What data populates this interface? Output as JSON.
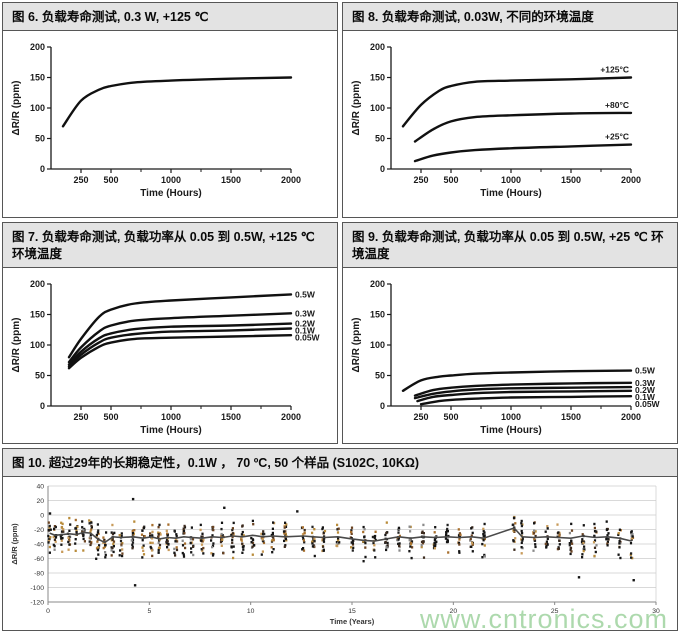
{
  "page": {
    "watermark": "www.cntronics.com",
    "watermark_color": "#9fd39f",
    "title_bar_bg": "#e3e3e3",
    "curve_color": "#111111",
    "grid_color": "#cccccc"
  },
  "panels": [
    {
      "title": "图 6. 负载寿命测试, 0.3 W, +125 ℃"
    },
    {
      "title": "图 8.  负载寿命测试, 0.03W, 不同的环境温度"
    },
    {
      "title": "图 7. 负载寿命测试, 负载功率从 0.05 到 0.5W, +125 ℃ 环境温度"
    },
    {
      "title": "图 9.  负载寿命测试, 负载功率从 0.05 到 0.5W, +25 ℃ 环境温度"
    },
    {
      "title": "图 10. 超过29年的长期稳定性，0.1W ， 70 ºC, 50 个样品 (S102C, 10KΩ)"
    }
  ],
  "chart_data": [
    {
      "type": "line",
      "title": "负载寿命测试 0.3W +125C",
      "xlabel": "Time (Hours)",
      "ylabel": "ΔR/R (ppm)",
      "xlim": [
        0,
        2000
      ],
      "ylim": [
        0,
        200
      ],
      "xticks_major": [
        250,
        500,
        1000,
        1500,
        2000
      ],
      "xticks_minor": [
        750,
        1250,
        1750
      ],
      "yticks": [
        0,
        50,
        100,
        150,
        200
      ],
      "label_pos": "none",
      "series": [
        {
          "name": "0.3W +125C",
          "points": [
            [
              100,
              70
            ],
            [
              250,
              112
            ],
            [
              400,
              130
            ],
            [
              500,
              136
            ],
            [
              700,
              142
            ],
            [
              1000,
              145
            ],
            [
              1500,
              148
            ],
            [
              2000,
              150
            ]
          ]
        }
      ]
    },
    {
      "type": "line",
      "title": "负载寿命测试 0.03W 不同环境温度",
      "xlabel": "Time (Hours)",
      "ylabel": "ΔR/R (ppm)",
      "xlim": [
        0,
        2000
      ],
      "ylim": [
        0,
        200
      ],
      "xticks_major": [
        250,
        500,
        1000,
        1500,
        2000
      ],
      "xticks_minor": [
        750,
        1250,
        1750
      ],
      "yticks": [
        0,
        50,
        100,
        150,
        200
      ],
      "label_pos": "above-end",
      "series": [
        {
          "name": "+125°C",
          "points": [
            [
              100,
              70
            ],
            [
              250,
              105
            ],
            [
              400,
              128
            ],
            [
              500,
              136
            ],
            [
              700,
              143
            ],
            [
              1000,
              145
            ],
            [
              1500,
              147
            ],
            [
              2000,
              150
            ]
          ]
        },
        {
          "name": "+80°C",
          "points": [
            [
              200,
              45
            ],
            [
              350,
              65
            ],
            [
              500,
              78
            ],
            [
              700,
              85
            ],
            [
              1000,
              88
            ],
            [
              1500,
              91
            ],
            [
              2000,
              92
            ]
          ]
        },
        {
          "name": "+25°C",
          "points": [
            [
              200,
              13
            ],
            [
              350,
              22
            ],
            [
              500,
              27
            ],
            [
              700,
              31
            ],
            [
              1000,
              34
            ],
            [
              1500,
              37
            ],
            [
              2000,
              40
            ]
          ]
        }
      ]
    },
    {
      "type": "line",
      "title": "负载寿命测试 0.05-0.5W +125C",
      "xlabel": "Time (Hours)",
      "ylabel": "ΔR/R (ppm)",
      "xlim": [
        0,
        2000
      ],
      "ylim": [
        0,
        200
      ],
      "xticks_major": [
        250,
        500,
        1000,
        1500,
        2000
      ],
      "xticks_minor": [
        750,
        1250,
        1750
      ],
      "yticks": [
        0,
        50,
        100,
        150,
        200
      ],
      "label_pos": "right",
      "series": [
        {
          "name": "0.5W",
          "points": [
            [
              150,
              80
            ],
            [
              250,
              110
            ],
            [
              400,
              146
            ],
            [
              500,
              158
            ],
            [
              700,
              168
            ],
            [
              1000,
              173
            ],
            [
              1500,
              178
            ],
            [
              2000,
              183
            ]
          ]
        },
        {
          "name": "0.3W",
          "points": [
            [
              150,
              72
            ],
            [
              250,
              96
            ],
            [
              400,
              122
            ],
            [
              500,
              132
            ],
            [
              700,
              140
            ],
            [
              1000,
              144
            ],
            [
              1500,
              148
            ],
            [
              2000,
              152
            ]
          ]
        },
        {
          "name": "0.2W",
          "points": [
            [
              150,
              68
            ],
            [
              250,
              89
            ],
            [
              400,
              111
            ],
            [
              500,
              119
            ],
            [
              700,
              126
            ],
            [
              1000,
              130
            ],
            [
              1500,
              132
            ],
            [
              2000,
              135
            ]
          ]
        },
        {
          "name": "0.1W",
          "points": [
            [
              150,
              65
            ],
            [
              250,
              84
            ],
            [
              400,
              104
            ],
            [
              500,
              112
            ],
            [
              700,
              118
            ],
            [
              1000,
              122
            ],
            [
              1500,
              124
            ],
            [
              2000,
              127
            ]
          ]
        },
        {
          "name": "0.05W",
          "points": [
            [
              150,
              62
            ],
            [
              250,
              79
            ],
            [
              400,
              97
            ],
            [
              500,
              104
            ],
            [
              700,
              110
            ],
            [
              1000,
              112
            ],
            [
              1500,
              114
            ],
            [
              2000,
              116
            ]
          ]
        }
      ]
    },
    {
      "type": "line",
      "title": "负载寿命测试 0.05-0.5W +25C",
      "xlabel": "Time (Hours)",
      "ylabel": "ΔR/R (ppm)",
      "xlim": [
        0,
        2000
      ],
      "ylim": [
        0,
        200
      ],
      "xticks_major": [
        250,
        500,
        1000,
        1500,
        2000
      ],
      "xticks_minor": [
        750,
        1250,
        1750
      ],
      "yticks": [
        0,
        50,
        100,
        150,
        200
      ],
      "label_pos": "right",
      "series": [
        {
          "name": "0.5W",
          "points": [
            [
              100,
              25
            ],
            [
              250,
              42
            ],
            [
              400,
              48
            ],
            [
              500,
              50
            ],
            [
              700,
              53
            ],
            [
              1000,
              55
            ],
            [
              1500,
              57
            ],
            [
              2000,
              58
            ]
          ]
        },
        {
          "name": "0.3W",
          "points": [
            [
              200,
              17
            ],
            [
              350,
              26
            ],
            [
              500,
              30
            ],
            [
              700,
              33
            ],
            [
              1000,
              35
            ],
            [
              1500,
              37
            ],
            [
              2000,
              38
            ]
          ]
        },
        {
          "name": "0.2W",
          "points": [
            [
              200,
              13
            ],
            [
              350,
              20
            ],
            [
              500,
              24
            ],
            [
              700,
              27
            ],
            [
              1000,
              29
            ],
            [
              1500,
              30
            ],
            [
              2000,
              31
            ]
          ]
        },
        {
          "name": "0.1W",
          "points": [
            [
              220,
              8
            ],
            [
              350,
              15
            ],
            [
              500,
              18
            ],
            [
              700,
              21
            ],
            [
              1000,
              23
            ],
            [
              1500,
              24
            ],
            [
              2000,
              25
            ]
          ]
        },
        {
          "name": "0.05W",
          "points": [
            [
              250,
              3
            ],
            [
              400,
              8
            ],
            [
              500,
              10
            ],
            [
              700,
              12
            ],
            [
              1000,
              14
            ],
            [
              1500,
              15
            ],
            [
              2000,
              16
            ]
          ]
        }
      ]
    },
    {
      "type": "scatter",
      "title": "29年长期稳定性 0.1W 70C 50个样品",
      "xlabel": "Time (Years)",
      "ylabel": "ΔR/R (ppm)",
      "xlim": [
        0,
        30
      ],
      "ylim": [
        -120,
        40
      ],
      "xticks": [
        0,
        5,
        10,
        15,
        20,
        25,
        30
      ],
      "yticks": [
        40,
        20,
        0,
        -20,
        -40,
        -60,
        -80,
        -100,
        -120
      ],
      "grid": "horizontal",
      "cluster_spread": 52,
      "cluster_size": 13,
      "point_palette": [
        "#151515",
        "#151515",
        "#151515",
        "#151515",
        "#222222",
        "#3d2b1f",
        "#6b4423",
        "#a86f2d",
        "#c89b5a",
        "#8a8a8a",
        "#b98c3a",
        "#151515"
      ],
      "mean_line_color": "#4a4a4a",
      "clusters": [
        {
          "x": 0.08,
          "mean": -25
        },
        {
          "x": 0.35,
          "mean": -28
        },
        {
          "x": 0.7,
          "mean": -27
        },
        {
          "x": 1.05,
          "mean": -26
        },
        {
          "x": 1.4,
          "mean": -27
        },
        {
          "x": 1.75,
          "mean": -24
        },
        {
          "x": 2.1,
          "mean": -25
        },
        {
          "x": 2.45,
          "mean": -33
        },
        {
          "x": 2.8,
          "mean": -38
        },
        {
          "x": 3.2,
          "mean": -30
        },
        {
          "x": 3.6,
          "mean": -31
        },
        {
          "x": 4.2,
          "mean": -30
        },
        {
          "x": 4.7,
          "mean": -32
        },
        {
          "x": 5.1,
          "mean": -30
        },
        {
          "x": 5.5,
          "mean": -33
        },
        {
          "x": 5.9,
          "mean": -31
        },
        {
          "x": 6.3,
          "mean": -32
        },
        {
          "x": 6.7,
          "mean": -30
        },
        {
          "x": 7.1,
          "mean": -31
        },
        {
          "x": 7.6,
          "mean": -32
        },
        {
          "x": 8.1,
          "mean": -30
        },
        {
          "x": 8.6,
          "mean": -31
        },
        {
          "x": 9.1,
          "mean": -29
        },
        {
          "x": 9.6,
          "mean": -30
        },
        {
          "x": 10.1,
          "mean": -28
        },
        {
          "x": 10.6,
          "mean": -30
        },
        {
          "x": 11.1,
          "mean": -29
        },
        {
          "x": 11.7,
          "mean": -30
        },
        {
          "x": 12.6,
          "mean": -29
        },
        {
          "x": 13.1,
          "mean": -30
        },
        {
          "x": 13.6,
          "mean": -31
        },
        {
          "x": 14.3,
          "mean": -30
        },
        {
          "x": 15.0,
          "mean": -33
        },
        {
          "x": 15.6,
          "mean": -35
        },
        {
          "x": 16.1,
          "mean": -36
        },
        {
          "x": 16.7,
          "mean": -33
        },
        {
          "x": 17.3,
          "mean": -30
        },
        {
          "x": 17.9,
          "mean": -32
        },
        {
          "x": 18.5,
          "mean": -30
        },
        {
          "x": 19.1,
          "mean": -31
        },
        {
          "x": 19.7,
          "mean": -30
        },
        {
          "x": 20.3,
          "mean": -31
        },
        {
          "x": 20.9,
          "mean": -30
        },
        {
          "x": 21.5,
          "mean": -32
        },
        {
          "x": 23.0,
          "mean": -18,
          "spread": 62
        },
        {
          "x": 23.4,
          "mean": -30
        },
        {
          "x": 24.0,
          "mean": -31
        },
        {
          "x": 24.6,
          "mean": -30
        },
        {
          "x": 25.2,
          "mean": -31
        },
        {
          "x": 25.8,
          "mean": -32
        },
        {
          "x": 26.4,
          "mean": -29
        },
        {
          "x": 27.0,
          "mean": -31
        },
        {
          "x": 27.6,
          "mean": -30
        },
        {
          "x": 28.2,
          "mean": -32
        },
        {
          "x": 28.8,
          "mean": -36
        }
      ],
      "outliers": [
        [
          4.2,
          22
        ],
        [
          4.3,
          -97
        ],
        [
          0.1,
          2
        ],
        [
          8.7,
          10
        ],
        [
          23.0,
          -4
        ],
        [
          26.2,
          -86
        ],
        [
          28.9,
          -90
        ],
        [
          12.3,
          5
        ]
      ]
    }
  ]
}
